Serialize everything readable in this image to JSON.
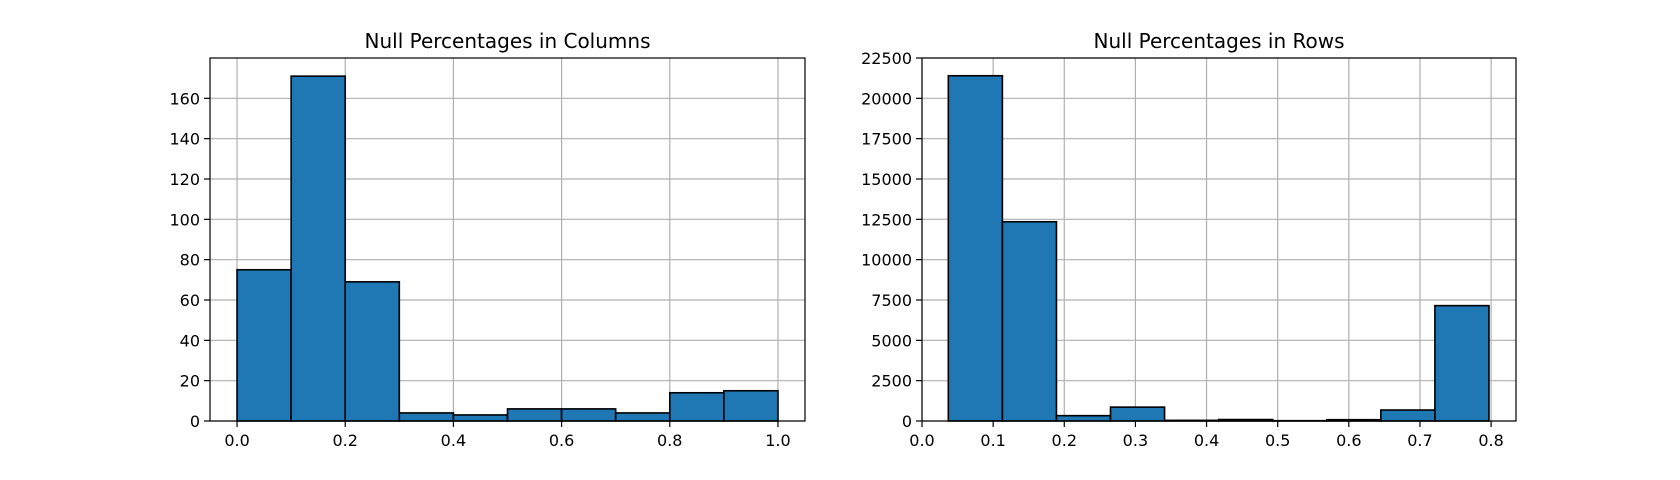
{
  "chart_data": [
    {
      "type": "bar",
      "title": "Null Percentages in Columns",
      "xlabel": "",
      "ylabel": "",
      "xlim": [
        -0.05,
        1.05
      ],
      "ylim": [
        0,
        180
      ],
      "grid": true,
      "bar_color": "#1f77b4",
      "edge_color": "#000000",
      "bins": [
        {
          "x0": 0.0,
          "x1": 0.1,
          "count": 75
        },
        {
          "x0": 0.1,
          "x1": 0.2,
          "count": 171
        },
        {
          "x0": 0.2,
          "x1": 0.3,
          "count": 69
        },
        {
          "x0": 0.3,
          "x1": 0.4,
          "count": 4
        },
        {
          "x0": 0.4,
          "x1": 0.5,
          "count": 3
        },
        {
          "x0": 0.5,
          "x1": 0.6,
          "count": 6
        },
        {
          "x0": 0.6,
          "x1": 0.7,
          "count": 6
        },
        {
          "x0": 0.7,
          "x1": 0.8,
          "count": 4
        },
        {
          "x0": 0.8,
          "x1": 0.9,
          "count": 14
        },
        {
          "x0": 0.9,
          "x1": 1.0,
          "count": 15
        }
      ],
      "xticks": [
        0.0,
        0.2,
        0.4,
        0.6,
        0.8,
        1.0
      ],
      "xtick_labels": [
        "0.0",
        "0.2",
        "0.4",
        "0.6",
        "0.8",
        "1.0"
      ],
      "yticks": [
        0,
        20,
        40,
        60,
        80,
        100,
        120,
        140,
        160
      ],
      "ytick_labels": [
        "0",
        "20",
        "40",
        "60",
        "80",
        "100",
        "120",
        "140",
        "160"
      ]
    },
    {
      "type": "bar",
      "title": "Null Percentages in Rows",
      "xlabel": "",
      "ylabel": "",
      "xlim": [
        0.0,
        0.835
      ],
      "ylim": [
        0,
        22500
      ],
      "grid": true,
      "bar_color": "#1f77b4",
      "edge_color": "#000000",
      "bins": [
        {
          "x0": 0.037,
          "x1": 0.113,
          "count": 21400
        },
        {
          "x0": 0.113,
          "x1": 0.189,
          "count": 12350
        },
        {
          "x0": 0.189,
          "x1": 0.265,
          "count": 330
        },
        {
          "x0": 0.265,
          "x1": 0.341,
          "count": 860
        },
        {
          "x0": 0.341,
          "x1": 0.417,
          "count": 40
        },
        {
          "x0": 0.417,
          "x1": 0.493,
          "count": 90
        },
        {
          "x0": 0.493,
          "x1": 0.569,
          "count": 20
        },
        {
          "x0": 0.569,
          "x1": 0.645,
          "count": 80
        },
        {
          "x0": 0.645,
          "x1": 0.721,
          "count": 680
        },
        {
          "x0": 0.721,
          "x1": 0.797,
          "count": 7150
        }
      ],
      "xticks": [
        0.0,
        0.1,
        0.2,
        0.3,
        0.4,
        0.5,
        0.6,
        0.7,
        0.8
      ],
      "xtick_labels": [
        "0.0",
        "0.1",
        "0.2",
        "0.3",
        "0.4",
        "0.5",
        "0.6",
        "0.7",
        "0.8"
      ],
      "yticks": [
        0,
        2500,
        5000,
        7500,
        10000,
        12500,
        15000,
        17500,
        20000,
        22500
      ],
      "ytick_labels": [
        "0",
        "2500",
        "5000",
        "7500",
        "10000",
        "12500",
        "15000",
        "17500",
        "20000",
        "22500"
      ]
    }
  ]
}
